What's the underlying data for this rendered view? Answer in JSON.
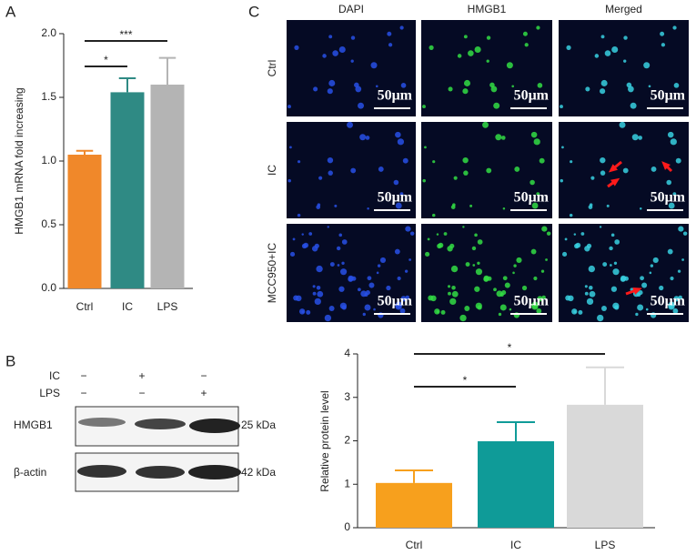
{
  "panel_labels": [
    "A",
    "B",
    "C"
  ],
  "chart_data": [
    {
      "type": "bar",
      "ylabel": "HMGB1 mRNA fold increasing",
      "categories": [
        "Ctrl",
        "IC",
        "LPS"
      ],
      "values": [
        1.05,
        1.54,
        1.6
      ],
      "errors": [
        0.03,
        0.11,
        0.21
      ],
      "colors": [
        "#f0882a",
        "#2f8a84",
        "#b4b4b4"
      ],
      "ylim": [
        0,
        2.0
      ],
      "yticks": [
        {
          "value": 0,
          "label": "0.0"
        },
        {
          "value": 0.5,
          "label": "0.5"
        },
        {
          "value": 1.0,
          "label": "1.0"
        },
        {
          "value": 1.5,
          "label": "1.5"
        },
        {
          "value": 2.0,
          "label": "2.0"
        }
      ],
      "significance": [
        {
          "label": "*",
          "between": [
            "Ctrl",
            "IC"
          ]
        },
        {
          "label": "***",
          "between": [
            "Ctrl",
            "LPS"
          ]
        }
      ]
    },
    {
      "type": "bar",
      "ylabel": "Relative protein level",
      "categories": [
        "Ctrl",
        "IC",
        "LPS"
      ],
      "values": [
        1.03,
        1.99,
        2.83
      ],
      "errors": [
        0.29,
        0.44,
        0.86
      ],
      "colors": [
        "#f7a01d",
        "#0f9b98",
        "#d9d9d9"
      ],
      "ylim": [
        0,
        4
      ],
      "yticks": [
        0,
        1,
        2,
        3,
        4
      ],
      "significance": [
        {
          "label": "*",
          "between": [
            "Ctrl",
            "IC"
          ]
        },
        {
          "label": "*",
          "between": [
            "Ctrl",
            "LPS"
          ]
        }
      ]
    }
  ],
  "microscopy": {
    "columns": [
      {
        "label": "DAPI",
        "color": "#2266dd"
      },
      {
        "label": "HMGB1",
        "color": "#22aa22"
      },
      {
        "label": "Merged",
        "color": "#222222"
      }
    ],
    "rows": [
      "Ctrl",
      "IC",
      "MCC950+IC"
    ],
    "scale_bar": "50μm"
  },
  "western_blot": {
    "conditions": [
      {
        "label": "IC",
        "signs": [
          "−",
          "+",
          "−"
        ]
      },
      {
        "label": "LPS",
        "signs": [
          "−",
          "−",
          "+"
        ]
      }
    ],
    "rows": [
      {
        "label": "HMGB1",
        "size": "25 kDa"
      },
      {
        "label": "β-actin",
        "size": "42 kDa"
      }
    ]
  }
}
